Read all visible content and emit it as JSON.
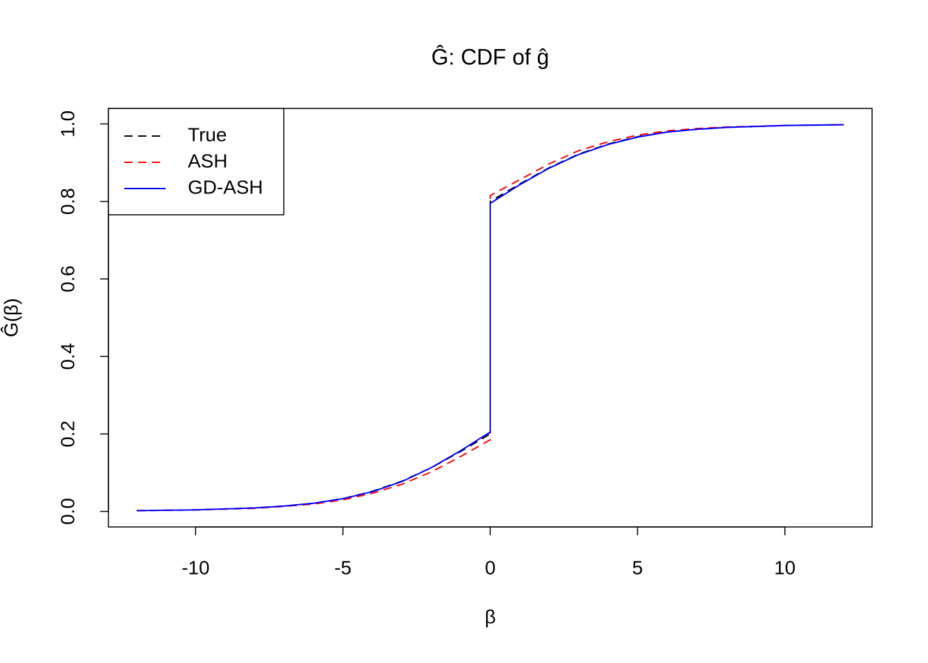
{
  "chart_data": {
    "type": "line",
    "title": "Ĝ: CDF of ĝ",
    "x_label": "β",
    "y_label": "Ĝ(β)",
    "x": [
      -12,
      -10,
      -8,
      -7,
      -6,
      -5,
      -4,
      -3,
      -2,
      -1,
      0,
      0,
      1,
      2,
      3,
      4,
      5,
      6,
      7,
      8,
      10,
      12
    ],
    "series": [
      {
        "name": "True",
        "color": "#000000",
        "dashed": true,
        "values": [
          0.002,
          0.004,
          0.009,
          0.014,
          0.021,
          0.033,
          0.052,
          0.078,
          0.113,
          0.155,
          0.2,
          0.8,
          0.845,
          0.887,
          0.922,
          0.948,
          0.967,
          0.979,
          0.986,
          0.991,
          0.996,
          0.998
        ]
      },
      {
        "name": "ASH",
        "color": "#ff0000",
        "dashed": true,
        "values": [
          0.002,
          0.004,
          0.008,
          0.013,
          0.019,
          0.03,
          0.047,
          0.07,
          0.102,
          0.142,
          0.185,
          0.815,
          0.856,
          0.897,
          0.931,
          0.954,
          0.971,
          0.982,
          0.988,
          0.992,
          0.996,
          0.998
        ]
      },
      {
        "name": "GD-ASH",
        "color": "#0000ff",
        "dashed": false,
        "values": [
          0.002,
          0.004,
          0.009,
          0.014,
          0.021,
          0.033,
          0.051,
          0.077,
          0.113,
          0.157,
          0.205,
          0.795,
          0.843,
          0.886,
          0.921,
          0.947,
          0.966,
          0.979,
          0.986,
          0.991,
          0.996,
          0.998
        ]
      }
    ],
    "xlim": [
      -12.96,
      12.96
    ],
    "ylim": [
      -0.04,
      1.04
    ],
    "xticks": [
      -10,
      -5,
      0,
      5,
      10
    ],
    "yticks": [
      {
        "value": 0,
        "label": "0.0"
      },
      0.2,
      0.4,
      0.6,
      0.8,
      {
        "value": 1,
        "label": "1.0"
      }
    ],
    "legend": "top-left"
  }
}
